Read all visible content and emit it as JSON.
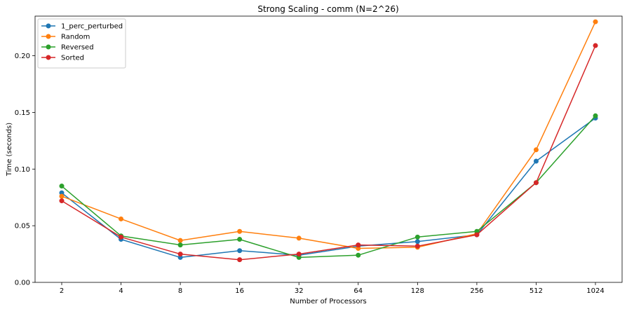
{
  "chart_data": {
    "type": "line",
    "title": "Strong Scaling - comm (N=2^26)",
    "xlabel": "Number of Processors",
    "ylabel": "Time (seconds)",
    "categories": [
      "2",
      "4",
      "8",
      "16",
      "32",
      "64",
      "128",
      "256",
      "512",
      "1024"
    ],
    "ylim": [
      0,
      0.235
    ],
    "yticks": [
      0.0,
      0.05,
      0.1,
      0.15,
      0.2
    ],
    "ytick_labels": [
      "0.00",
      "0.05",
      "0.10",
      "0.15",
      "0.20"
    ],
    "grid": false,
    "legend_position": "top-left",
    "series": [
      {
        "name": "1_perc_perturbed",
        "color": "#1f77b4",
        "values": [
          0.079,
          0.038,
          0.022,
          0.028,
          0.024,
          0.032,
          0.036,
          0.042,
          0.107,
          0.145
        ]
      },
      {
        "name": "Random",
        "color": "#ff7f0e",
        "values": [
          0.076,
          0.056,
          0.037,
          0.045,
          0.039,
          0.03,
          0.031,
          0.043,
          0.117,
          0.23
        ]
      },
      {
        "name": "Reversed",
        "color": "#2ca02c",
        "values": [
          0.085,
          0.041,
          0.033,
          0.038,
          0.022,
          0.024,
          0.04,
          0.045,
          0.088,
          0.147
        ]
      },
      {
        "name": "Sorted",
        "color": "#d62728",
        "values": [
          0.072,
          0.04,
          0.025,
          0.02,
          0.025,
          0.033,
          0.032,
          0.042,
          0.088,
          0.209
        ]
      }
    ]
  }
}
